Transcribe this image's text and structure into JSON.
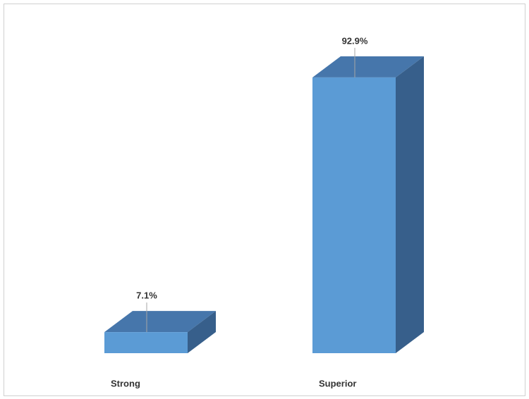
{
  "chart_data": {
    "type": "bar3d",
    "categories": [
      "Strong",
      "Superior"
    ],
    "values": [
      7.1,
      92.9
    ],
    "value_labels": [
      "7.1%",
      "92.9%"
    ],
    "color": "#5b9bd5"
  }
}
